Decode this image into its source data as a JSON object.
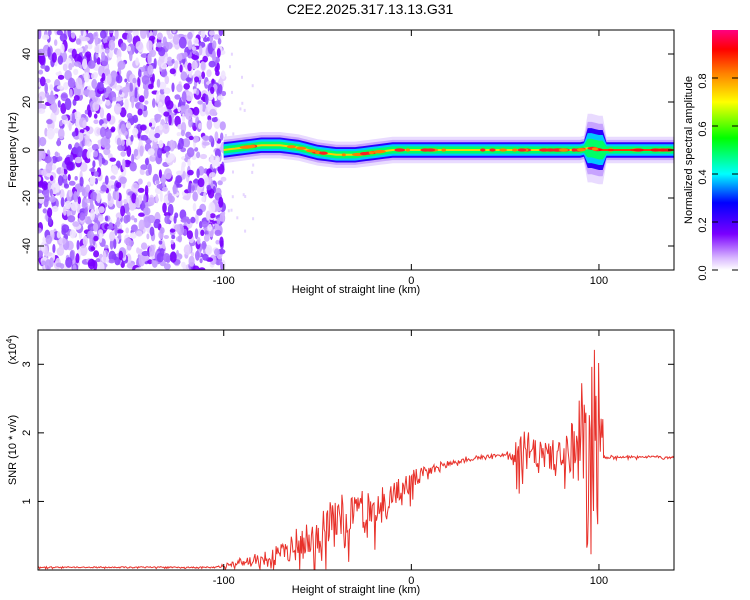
{
  "figure_title": "C2E2.2025.317.13.13.G31",
  "chart_data": [
    {
      "type": "heatmap",
      "name": "spectrogram",
      "xlabel": "Height of straight line (km)",
      "ylabel": "Frequency (Hz)",
      "xlim": [
        -199,
        140
      ],
      "ylim": [
        -50,
        50
      ],
      "xticks": [
        -100,
        0,
        100
      ],
      "xtick_labels": [
        "-100",
        "0",
        "100"
      ],
      "yticks": [
        -40,
        -20,
        0,
        20,
        40
      ],
      "ytick_labels": [
        "-40",
        "-20",
        "0",
        "20",
        "40"
      ],
      "noise_region": [
        -199,
        -100
      ],
      "signal_ridge": {
        "x": [
          -100,
          -90,
          -80,
          -70,
          -60,
          -50,
          -40,
          -30,
          -20,
          -10,
          0,
          20,
          40,
          60,
          80,
          90,
          95,
          100,
          110,
          140
        ],
        "y": [
          0,
          1,
          2,
          2,
          1,
          -1,
          -2,
          -2,
          -1,
          0,
          0,
          0,
          0,
          0,
          0,
          0,
          1,
          0,
          0,
          0
        ]
      },
      "colorbar": {
        "label": "Normalized spectral amplitude",
        "range": [
          0,
          1
        ],
        "ticks": [
          0.0,
          0.2,
          0.4,
          0.6,
          0.8
        ],
        "tick_labels": [
          "0.0",
          "0.2",
          "0.4",
          "0.6",
          "0.8"
        ],
        "colors": [
          "#ffffff",
          "#7a00ff",
          "#0000ff",
          "#00ffff",
          "#00ff00",
          "#ffff00",
          "#ff8000",
          "#ff0000",
          "#ff0080"
        ]
      }
    },
    {
      "type": "line",
      "name": "snr",
      "xlabel": "Height of straight line (km)",
      "ylabel": "SNR (10 * v/v)",
      "y_multiplier": "(x10",
      "y_multiplier_exp": "4",
      "y_multiplier_close": ")",
      "xlim": [
        -199,
        140
      ],
      "ylim": [
        0,
        3.5
      ],
      "xticks": [
        -100,
        0,
        100
      ],
      "xtick_labels": [
        "-100",
        "0",
        "100"
      ],
      "yticks": [
        1,
        2,
        3
      ],
      "ytick_labels": [
        "1",
        "2",
        "3"
      ],
      "color": "#e8312a",
      "envelope": {
        "x": [
          -199,
          -105,
          -90,
          -80,
          -70,
          -60,
          -50,
          -40,
          -30,
          -20,
          -10,
          0,
          10,
          20,
          30,
          40,
          50,
          60,
          70,
          80,
          90,
          95,
          100,
          103,
          110,
          140
        ],
        "base": [
          0.04,
          0.04,
          0.12,
          0.18,
          0.25,
          0.4,
          0.6,
          0.75,
          0.85,
          0.95,
          1.1,
          1.3,
          1.45,
          1.55,
          1.62,
          1.66,
          1.68,
          1.68,
          1.68,
          1.66,
          1.64,
          1.64,
          1.6,
          1.65,
          1.65,
          1.65
        ],
        "amp": [
          0.01,
          0.01,
          0.08,
          0.1,
          0.15,
          0.35,
          0.4,
          0.4,
          0.4,
          0.35,
          0.25,
          0.2,
          0.1,
          0.08,
          0.05,
          0.03,
          0.03,
          0.4,
          0.35,
          0.4,
          1.2,
          1.7,
          1.8,
          0.03,
          0.02,
          0.02
        ]
      }
    }
  ]
}
